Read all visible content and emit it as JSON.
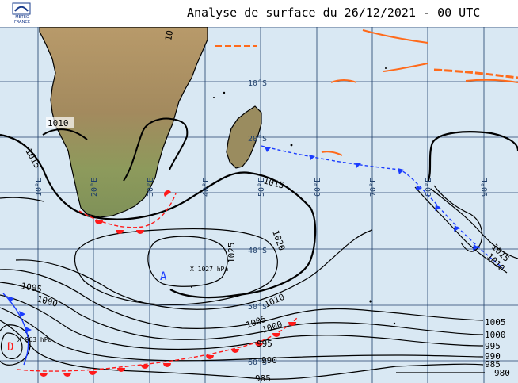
{
  "header": {
    "title": "Analyse de surface du 26/12/2021 - 00 UTC",
    "logo_text_line1": "METEO",
    "logo_text_line2": "FRANCE"
  },
  "colors": {
    "sea": "#d9e8f3",
    "grid": "#1f3f6a",
    "land_low": "#8e9a5b",
    "land_high": "#a88a5c",
    "isobar": "#000000",
    "cold_front": "#1a3cff",
    "warm_front": "#ff1a1a",
    "trough": "#ff6a1a"
  },
  "grid_labels": {
    "longitudes": [
      "10°E",
      "20°E",
      "30°E",
      "40°E",
      "50°E",
      "60°E",
      "70°E",
      "80°E",
      "90°E"
    ],
    "latitudes": [
      "10°S",
      "20°S",
      "40°S",
      "50°S",
      "60°S"
    ]
  },
  "isobar_labels": [
    "1010",
    "1015",
    "1015",
    "1020",
    "1025",
    "1005",
    "1000",
    "1010",
    "1005",
    "1000",
    "995",
    "990",
    "985",
    "1005",
    "1000",
    "995",
    "990",
    "985",
    "980",
    "1015",
    "1010",
    "10"
  ],
  "centers": {
    "high_letter": "A",
    "high_label": "X 1027 hPa",
    "low_letter": "D",
    "low_label": "X 963 hPa"
  }
}
